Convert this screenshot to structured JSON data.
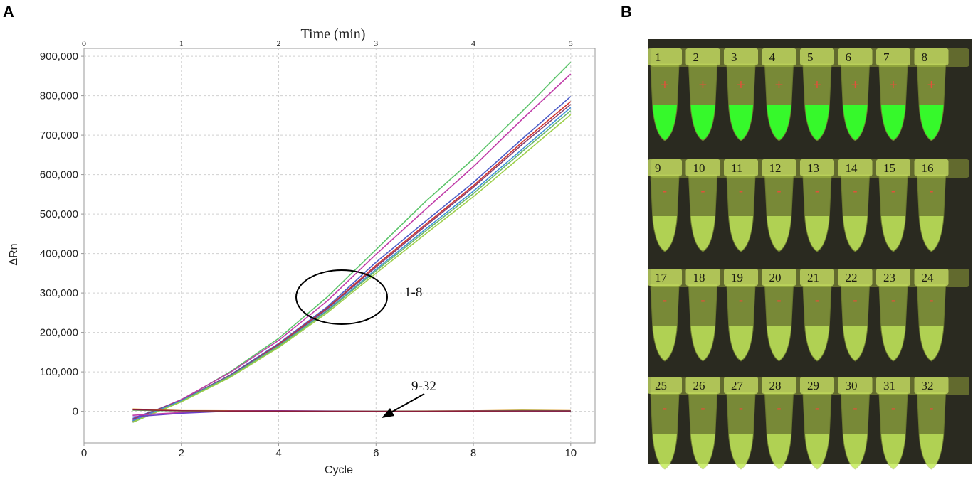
{
  "panel_a": {
    "letter": "A",
    "annotations": {
      "group_positive": "1-8",
      "group_negative": "9-32"
    }
  },
  "panel_b": {
    "letter": "B",
    "rows": [
      {
        "tubes": [
          {
            "number": "1",
            "sign": "+",
            "result": "positive"
          },
          {
            "number": "2",
            "sign": "+",
            "result": "positive"
          },
          {
            "number": "3",
            "sign": "+",
            "result": "positive"
          },
          {
            "number": "4",
            "sign": "+",
            "result": "positive"
          },
          {
            "number": "5",
            "sign": "+",
            "result": "positive"
          },
          {
            "number": "6",
            "sign": "+",
            "result": "positive"
          },
          {
            "number": "7",
            "sign": "+",
            "result": "positive"
          },
          {
            "number": "8",
            "sign": "+",
            "result": "positive"
          }
        ]
      },
      {
        "tubes": [
          {
            "number": "9",
            "sign": "-",
            "result": "negative"
          },
          {
            "number": "10",
            "sign": "-",
            "result": "negative"
          },
          {
            "number": "11",
            "sign": "-",
            "result": "negative"
          },
          {
            "number": "12",
            "sign": "-",
            "result": "negative"
          },
          {
            "number": "13",
            "sign": "-",
            "result": "negative"
          },
          {
            "number": "14",
            "sign": "-",
            "result": "negative"
          },
          {
            "number": "15",
            "sign": "-",
            "result": "negative"
          },
          {
            "number": "16",
            "sign": "-",
            "result": "negative"
          }
        ]
      },
      {
        "tubes": [
          {
            "number": "17",
            "sign": "-",
            "result": "negative"
          },
          {
            "number": "18",
            "sign": "-",
            "result": "negative"
          },
          {
            "number": "19",
            "sign": "-",
            "result": "negative"
          },
          {
            "number": "20",
            "sign": "-",
            "result": "negative"
          },
          {
            "number": "21",
            "sign": "-",
            "result": "negative"
          },
          {
            "number": "22",
            "sign": "-",
            "result": "negative"
          },
          {
            "number": "23",
            "sign": "-",
            "result": "negative"
          },
          {
            "number": "24",
            "sign": "-",
            "result": "negative"
          }
        ]
      },
      {
        "tubes": [
          {
            "number": "25",
            "sign": "-",
            "result": "negative"
          },
          {
            "number": "26",
            "sign": "-",
            "result": "negative"
          },
          {
            "number": "27",
            "sign": "-",
            "result": "negative"
          },
          {
            "number": "28",
            "sign": "-",
            "result": "negative"
          },
          {
            "number": "29",
            "sign": "-",
            "result": "negative"
          },
          {
            "number": "30",
            "sign": "-",
            "result": "negative"
          },
          {
            "number": "31",
            "sign": "-",
            "result": "negative"
          },
          {
            "number": "32",
            "sign": "-",
            "result": "negative"
          }
        ]
      }
    ],
    "colors": {
      "background": "#2a2a20",
      "positive_fill": "#33ff2a",
      "negative_fill": "#c8f060",
      "tube_body": "#b8d84a",
      "sign": "#e0523a"
    }
  },
  "chart_data": {
    "type": "line",
    "title": "",
    "xlabel": "Cycle",
    "ylabel": "ΔRn",
    "top_xlabel": "Time (min)",
    "xlim": [
      0,
      10.5
    ],
    "ylim": [
      -80000,
      920000
    ],
    "xticks": [
      0,
      2,
      4,
      6,
      8,
      10
    ],
    "xtick_labels": [
      "0",
      "2",
      "4",
      "6",
      "8",
      "10"
    ],
    "top_xlim": [
      0,
      5.25
    ],
    "top_xticks": [
      0,
      1,
      2,
      3,
      4,
      5
    ],
    "top_xtick_labels": [
      "0",
      "1",
      "2",
      "3",
      "4",
      "5"
    ],
    "yticks": [
      0,
      100000,
      200000,
      300000,
      400000,
      500000,
      600000,
      700000,
      800000,
      900000
    ],
    "ytick_labels": [
      "0",
      "100,000",
      "200,000",
      "300,000",
      "400,000",
      "500,000",
      "600,000",
      "700,000",
      "800,000",
      "900,000"
    ],
    "grid": true,
    "legend": "none",
    "x": [
      1,
      2,
      3,
      4,
      5,
      6,
      7,
      8,
      9,
      10
    ],
    "series": [
      {
        "color": "#5cc46a",
        "values": [
          -25000,
          28000,
          100000,
          185000,
          290000,
          410000,
          530000,
          640000,
          760000,
          885000
        ]
      },
      {
        "color": "#c03ca8",
        "values": [
          -22000,
          30000,
          98000,
          180000,
          280000,
          398000,
          510000,
          620000,
          740000,
          855000
        ]
      },
      {
        "color": "#4b5cc8",
        "values": [
          -18000,
          27000,
          92000,
          172000,
          265000,
          378000,
          480000,
          580000,
          690000,
          798000
        ]
      },
      {
        "color": "#d0342c",
        "values": [
          -26000,
          26000,
          90000,
          170000,
          262000,
          370000,
          472000,
          572000,
          682000,
          785000
        ]
      },
      {
        "color": "#8a3e6e",
        "values": [
          -20000,
          28000,
          91000,
          168000,
          260000,
          366000,
          468000,
          568000,
          676000,
          778000
        ]
      },
      {
        "color": "#3f8fd8",
        "values": [
          -24000,
          27000,
          89000,
          166000,
          256000,
          360000,
          460000,
          558000,
          664000,
          770000
        ]
      },
      {
        "color": "#6ab86a",
        "values": [
          -28000,
          25000,
          88000,
          165000,
          254000,
          356000,
          455000,
          552000,
          658000,
          762000
        ]
      },
      {
        "color": "#9ecf4a",
        "values": [
          -27000,
          24000,
          86000,
          162000,
          250000,
          350000,
          448000,
          544000,
          648000,
          752000
        ]
      },
      {
        "color": "#e0a030",
        "values": [
          6000,
          2000,
          1500,
          800,
          400,
          500,
          800,
          1200,
          3000,
          2000
        ]
      },
      {
        "color": "#c03ca8",
        "values": [
          -10000,
          -3000,
          1000,
          1500,
          500,
          300,
          600,
          1000,
          1500,
          1200
        ]
      },
      {
        "color": "#6a3ec8",
        "values": [
          -14000,
          -5000,
          500,
          1000,
          800,
          400,
          300,
          500,
          900,
          700
        ]
      },
      {
        "color": "#5cc46a",
        "values": [
          3000,
          1000,
          500,
          300,
          200,
          300,
          500,
          800,
          1800,
          1300
        ]
      },
      {
        "color": "#8a1e3a",
        "values": [
          4000,
          1500,
          800,
          600,
          300,
          200,
          400,
          700,
          1000,
          900
        ]
      }
    ],
    "annotations": [
      {
        "text": "1-8",
        "kind": "ellipse-label",
        "x": 5.35,
        "y": 305000
      },
      {
        "text": "9-32",
        "kind": "arrow-label",
        "x": 6.1,
        "y": 0
      }
    ]
  }
}
